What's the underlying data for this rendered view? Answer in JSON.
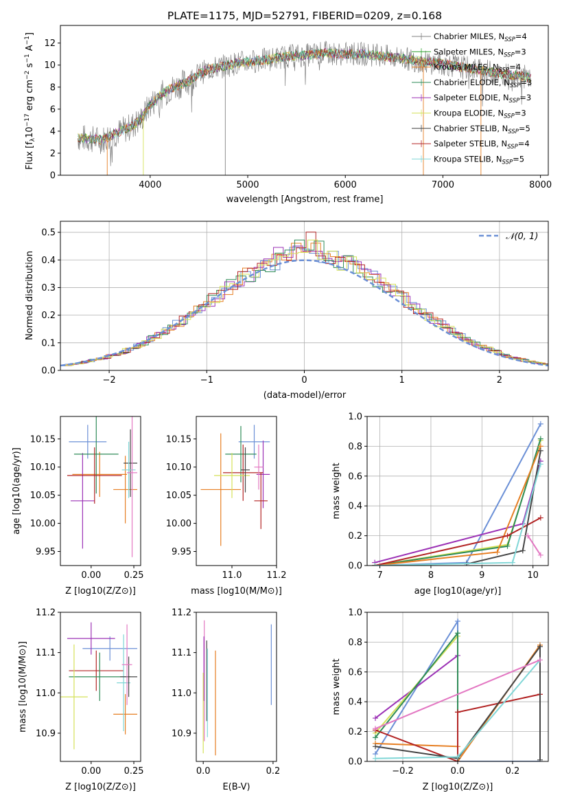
{
  "chart_data": [
    {
      "type": "line",
      "title": "PLATE=1175, MJD=52791, FIBERID=0209, z=0.168",
      "xlabel": "wavelength [Angstrom, rest frame]",
      "ylabel": "Flux [f_λ 10^-17 erg cm^-2 s^-1 A^-1]",
      "xlim": [
        3080,
        8080
      ],
      "ylim": [
        0,
        13.6
      ],
      "xticks": [
        "4000",
        "5000",
        "6000",
        "7000",
        "8000"
      ],
      "yticks": [
        "0",
        "2",
        "4",
        "6",
        "8",
        "10",
        "12"
      ],
      "legend_position": "right",
      "series": [
        {
          "name": "Chabrier MILES, N_SSP=4",
          "color": "#808080"
        },
        {
          "name": "Salpeter MILES, N_SSP=3",
          "color": "#2ca02c"
        },
        {
          "name": "Kroupa MILES, N_SSP=4",
          "color": "#e67e22"
        },
        {
          "name": "Chabrier ELODIE, N_SSP=3",
          "color": "#2e8b57"
        },
        {
          "name": "Salpeter ELODIE, N_SSP=3",
          "color": "#9b30b5"
        },
        {
          "name": "Kroupa ELODIE, N_SSP=3",
          "color": "#d4e157"
        },
        {
          "name": "Chabrier STELIB, N_SSP=5",
          "color": "#444444"
        },
        {
          "name": "Salpeter STELIB, N_SSP=4",
          "color": "#b22222"
        },
        {
          "name": "Kroupa STELIB, N_SSP=5",
          "color": "#7fd6d6"
        }
      ],
      "continuum": {
        "x": [
          3260,
          3500,
          3600,
          3700,
          3800,
          3900,
          4000,
          4100,
          4200,
          4300,
          4400,
          4500,
          4600,
          4700,
          4800,
          4900,
          5000,
          5200,
          5400,
          5600,
          5800,
          6000,
          6200,
          6400,
          6600,
          6800,
          7000,
          7200,
          7400,
          7600,
          7800,
          8000
        ],
        "y": [
          3.4,
          3.2,
          3.6,
          4.0,
          4.4,
          5.0,
          6.4,
          7.2,
          7.8,
          8.2,
          8.6,
          9.2,
          9.6,
          9.8,
          10.0,
          10.2,
          10.3,
          10.5,
          10.8,
          10.9,
          11.1,
          11.0,
          11.0,
          10.8,
          10.6,
          10.3,
          10.1,
          9.8,
          9.5,
          9.2,
          9.0,
          8.7
        ]
      }
    },
    {
      "type": "line",
      "xlabel": "(data-model)/error",
      "ylabel": "Normed distribution",
      "xlim": [
        -2.5,
        2.5
      ],
      "ylim": [
        0,
        0.54
      ],
      "xticks": [
        "−2",
        "−1",
        "0",
        "1",
        "2"
      ],
      "yticks": [
        "0.0",
        "0.1",
        "0.2",
        "0.3",
        "0.4",
        "0.5"
      ],
      "grid": true,
      "legend_position": "top-right",
      "legend": "𝒩(0, 1)",
      "series_colors": [
        "#6a8fd6",
        "#e67e22",
        "#9b30b5",
        "#2e8b57",
        "#b22222",
        "#d4e157"
      ],
      "histogram_peak": 0.5
    },
    {
      "type": "scatter",
      "xlabel": "Z [log10(Z/Z⊙)]",
      "ylabel": "age  [log10(age/yr)]",
      "xlim": [
        -0.18,
        0.29
      ],
      "ylim": [
        9.925,
        10.19
      ],
      "xticks": [
        "0.00",
        "0.25"
      ],
      "yticks": [
        "9.95",
        "10.00",
        "10.05",
        "10.10",
        "10.15"
      ],
      "points": [
        {
          "x": -0.02,
          "xerr": 0.11,
          "y": 10.145,
          "yerr": 0.03,
          "color": "#6a8fd6"
        },
        {
          "x": 0.05,
          "xerr": 0.16,
          "y": 10.087,
          "yerr": 0.04,
          "color": "#e67e22"
        },
        {
          "x": -0.05,
          "xerr": 0.07,
          "y": 10.04,
          "yerr": 0.085,
          "color": "#9b30b5"
        },
        {
          "x": 0.03,
          "xerr": 0.13,
          "y": 10.123,
          "yerr": 0.07,
          "color": "#2e8b57"
        },
        {
          "x": 0.02,
          "xerr": 0.16,
          "y": 10.085,
          "yerr": 0.05,
          "color": "#b22222"
        },
        {
          "x": 0.2,
          "xerr": 0.07,
          "y": 10.06,
          "yerr": 0.06,
          "color": "#e67e22"
        },
        {
          "x": 0.23,
          "xerr": 0.04,
          "y": 10.107,
          "yerr": 0.06,
          "color": "#444444"
        },
        {
          "x": 0.22,
          "xerr": 0.04,
          "y": 10.095,
          "yerr": 0.05,
          "color": "#7fd6d6"
        },
        {
          "x": 0.24,
          "xerr": 0.03,
          "y": 10.09,
          "yerr": 0.15,
          "color": "#e377c2"
        }
      ]
    },
    {
      "type": "scatter",
      "xlabel": "mass [log10(M/M⊙)]",
      "ylabel": "",
      "xlim": [
        10.84,
        11.2
      ],
      "ylim": [
        9.925,
        10.19
      ],
      "xticks": [
        "11.0",
        "11.2"
      ],
      "yticks": [
        "9.95",
        "10.00",
        "10.05",
        "10.10",
        "10.15"
      ],
      "points": [
        {
          "x": 11.1,
          "xerr": 0.07,
          "y": 10.145,
          "yerr": 0.03,
          "color": "#6a8fd6"
        },
        {
          "x": 10.95,
          "xerr": 0.09,
          "y": 10.06,
          "yerr": 0.1,
          "color": "#e67e22"
        },
        {
          "x": 11.14,
          "xerr": 0.03,
          "y": 10.087,
          "yerr": 0.06,
          "color": "#9b30b5"
        },
        {
          "x": 11.04,
          "xerr": 0.07,
          "y": 10.123,
          "yerr": 0.05,
          "color": "#2e8b57"
        },
        {
          "x": 11.05,
          "xerr": 0.09,
          "y": 10.09,
          "yerr": 0.05,
          "color": "#b22222"
        },
        {
          "x": 11.0,
          "xerr": 0.08,
          "y": 10.085,
          "yerr": 0.04,
          "color": "#d4e157"
        },
        {
          "x": 11.13,
          "xerr": 0.03,
          "y": 10.04,
          "yerr": 0.05,
          "color": "#b22222"
        },
        {
          "x": 11.12,
          "xerr": 0.02,
          "y": 10.1,
          "yerr": 0.04,
          "color": "#e377c2"
        },
        {
          "x": 11.06,
          "xerr": 0.02,
          "y": 10.095,
          "yerr": 0.04,
          "color": "#444444"
        }
      ]
    },
    {
      "type": "line",
      "xlabel": "age  [log10(age/yr)]",
      "ylabel": "mass weight",
      "xlim": [
        6.75,
        10.3
      ],
      "ylim": [
        0,
        1.0
      ],
      "xticks": [
        "7",
        "8",
        "9",
        "10"
      ],
      "yticks": [
        "0.0",
        "0.2",
        "0.4",
        "0.6",
        "0.8",
        "1.0"
      ],
      "grid": true,
      "series": [
        {
          "color": "#6a8fd6",
          "x": [
            6.9,
            8.7,
            10.15
          ],
          "y": [
            0.0,
            0.02,
            0.95
          ]
        },
        {
          "color": "#9b30b5",
          "x": [
            6.9,
            9.8,
            10.15
          ],
          "y": [
            0.02,
            0.28,
            0.7
          ]
        },
        {
          "color": "#d4e157",
          "x": [
            6.9,
            9.5,
            10.15
          ],
          "y": [
            0.0,
            0.14,
            0.84
          ]
        },
        {
          "color": "#2e8b57",
          "x": [
            6.9,
            9.5,
            10.15
          ],
          "y": [
            0.0,
            0.13,
            0.85
          ]
        },
        {
          "color": "#e67e22",
          "x": [
            6.9,
            9.3,
            10.15
          ],
          "y": [
            0.0,
            0.09,
            0.8
          ]
        },
        {
          "color": "#b22222",
          "x": [
            6.9,
            9.5,
            10.15
          ],
          "y": [
            0.0,
            0.2,
            0.32
          ]
        },
        {
          "color": "#444444",
          "x": [
            8.7,
            9.8,
            10.15
          ],
          "y": [
            0.01,
            0.1,
            0.77
          ]
        },
        {
          "color": "#7fd6d6",
          "x": [
            6.9,
            9.6,
            10.15
          ],
          "y": [
            0.0,
            0.02,
            0.68
          ]
        },
        {
          "color": "#e377c2",
          "x": [
            9.9,
            10.15
          ],
          "y": [
            0.2,
            0.07
          ]
        }
      ]
    },
    {
      "type": "scatter",
      "xlabel": "Z [log10(Z/Z⊙)]",
      "ylabel": "mass [log10(M/M⊙)]",
      "xlim": [
        -0.18,
        0.29
      ],
      "ylim": [
        10.83,
        11.2
      ],
      "xticks": [
        "0.00",
        "0.25"
      ],
      "yticks": [
        "10.9",
        "11.0",
        "11.1",
        "11.2"
      ],
      "points": [
        {
          "x": 0.11,
          "xerr": 0.16,
          "y": 11.11,
          "yerr": 0.03,
          "color": "#6a8fd6"
        },
        {
          "x": 0.0,
          "xerr": 0.14,
          "y": 11.135,
          "yerr": 0.04,
          "color": "#9b30b5"
        },
        {
          "x": 0.03,
          "xerr": 0.16,
          "y": 11.055,
          "yerr": 0.05,
          "color": "#b22222"
        },
        {
          "x": 0.05,
          "xerr": 0.18,
          "y": 11.04,
          "yerr": 0.06,
          "color": "#2e8b57"
        },
        {
          "x": 0.2,
          "xerr": 0.07,
          "y": 10.947,
          "yerr": 0.05,
          "color": "#e67e22"
        },
        {
          "x": 0.19,
          "xerr": 0.04,
          "y": 11.025,
          "yerr": 0.12,
          "color": "#7fd6d6"
        },
        {
          "x": 0.22,
          "xerr": 0.05,
          "y": 11.04,
          "yerr": 0.05,
          "color": "#444444"
        },
        {
          "x": -0.1,
          "xerr": 0.08,
          "y": 10.99,
          "yerr": 0.13,
          "color": "#d4e157"
        },
        {
          "x": 0.21,
          "xerr": 0.03,
          "y": 11.07,
          "yerr": 0.1,
          "color": "#e377c2"
        }
      ]
    },
    {
      "type": "scatter",
      "xlabel": "E(B-V)",
      "ylabel": "",
      "xlim": [
        -0.02,
        0.21
      ],
      "ylim": [
        10.83,
        11.2
      ],
      "xticks": [
        "0.0",
        "0.2"
      ],
      "yticks": [
        "10.9",
        "11.0",
        "11.1",
        "11.2"
      ],
      "points": [
        {
          "x": 0.003,
          "y": 11.03,
          "yerr": 0.15,
          "color": "#e377c2"
        },
        {
          "x": 0.002,
          "y": 11.06,
          "yerr": 0.08,
          "color": "#9b30b5"
        },
        {
          "x": 0.0,
          "y": 10.95,
          "yerr": 0.1,
          "color": "#d4e157"
        },
        {
          "x": 0.01,
          "y": 11.03,
          "yerr": 0.1,
          "color": "#444444"
        },
        {
          "x": 0.012,
          "y": 11.0,
          "yerr": 0.11,
          "color": "#7fd6d6"
        },
        {
          "x": 0.035,
          "y": 10.975,
          "yerr": 0.13,
          "color": "#e67e22"
        },
        {
          "x": 0.195,
          "y": 11.07,
          "yerr": 0.1,
          "color": "#6a8fd6"
        }
      ]
    },
    {
      "type": "line",
      "xlabel": "Z [log10(Z/Z⊙)]",
      "ylabel": "mass weight",
      "xlim": [
        -0.33,
        0.33
      ],
      "ylim": [
        0,
        1.0
      ],
      "xticks": [
        "−0.2",
        "0.0",
        "0.2"
      ],
      "yticks": [
        "0.0",
        "0.2",
        "0.4",
        "0.6",
        "0.8",
        "1.0"
      ],
      "grid": true,
      "series": [
        {
          "color": "#6a8fd6",
          "x": [
            -0.3,
            0.0,
            0.0,
            0.3
          ],
          "y": [
            0.05,
            0.94,
            0.0,
            0.0
          ]
        },
        {
          "color": "#9b30b5",
          "x": [
            -0.3,
            0.0
          ],
          "y": [
            0.29,
            0.71
          ]
        },
        {
          "color": "#d4e157",
          "x": [
            -0.3,
            0.0,
            0.0
          ],
          "y": [
            0.19,
            0.84,
            0.03
          ]
        },
        {
          "color": "#2e8b57",
          "x": [
            -0.3,
            0.0,
            0.0
          ],
          "y": [
            0.16,
            0.86,
            0.03
          ]
        },
        {
          "color": "#e67e22",
          "x": [
            -0.3,
            0.0,
            0.0,
            0.3
          ],
          "y": [
            0.12,
            0.1,
            0.0,
            0.78
          ]
        },
        {
          "color": "#b22222",
          "x": [
            -0.3,
            0.0,
            0.0,
            0.0,
            0.3
          ],
          "y": [
            0.21,
            0.0,
            0.33,
            0.33,
            0.45
          ]
        },
        {
          "color": "#444444",
          "x": [
            -0.3,
            0.0,
            0.3,
            0.3
          ],
          "y": [
            0.1,
            0.02,
            0.77,
            0.01
          ]
        },
        {
          "color": "#7fd6d6",
          "x": [
            -0.3,
            0.0,
            0.3
          ],
          "y": [
            0.02,
            0.03,
            0.68
          ]
        },
        {
          "color": "#e377c2",
          "x": [
            -0.3,
            0.3
          ],
          "y": [
            0.22,
            0.68
          ]
        }
      ]
    }
  ]
}
